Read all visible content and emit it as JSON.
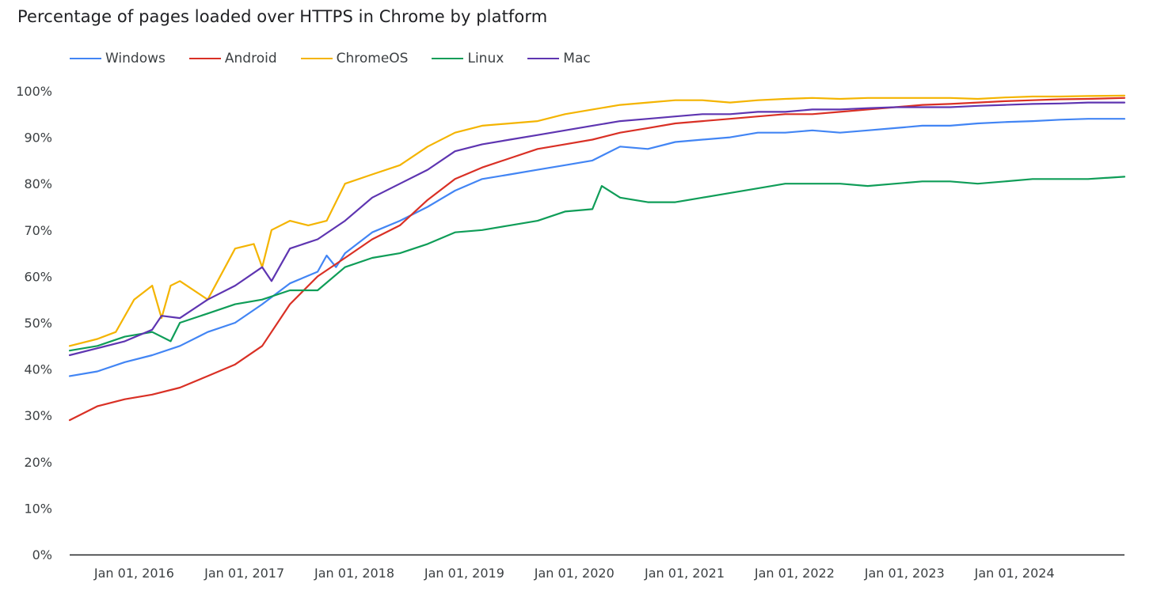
{
  "chart_data": {
    "type": "line",
    "title": "Percentage of pages loaded over HTTPS in Chrome by platform",
    "xlabel": "",
    "ylabel": "",
    "x_range": [
      "2015-06-01",
      "2024-12-31"
    ],
    "ylim": [
      0,
      100
    ],
    "y_ticks": [
      "0%",
      "10%",
      "20%",
      "30%",
      "40%",
      "50%",
      "60%",
      "70%",
      "80%",
      "90%",
      "100%"
    ],
    "x_ticks": [
      {
        "label": "Jan 01, 2016",
        "date": "2016-01-01"
      },
      {
        "label": "Jan 01, 2017",
        "date": "2017-01-01"
      },
      {
        "label": "Jan 01, 2018",
        "date": "2018-01-01"
      },
      {
        "label": "Jan 01, 2019",
        "date": "2019-01-01"
      },
      {
        "label": "Jan 01, 2020",
        "date": "2020-01-01"
      },
      {
        "label": "Jan 01, 2021",
        "date": "2021-01-01"
      },
      {
        "label": "Jan 01, 2022",
        "date": "2022-01-01"
      },
      {
        "label": "Jan 01, 2023",
        "date": "2023-01-01"
      },
      {
        "label": "Jan 01, 2024",
        "date": "2024-01-01"
      }
    ],
    "grid": false,
    "legend_position": "top-left",
    "series": [
      {
        "name": "Windows",
        "color": "#4285f4",
        "points": [
          [
            "2015-06-01",
            38.5
          ],
          [
            "2015-09-01",
            39.5
          ],
          [
            "2015-12-01",
            41.5
          ],
          [
            "2016-03-01",
            43
          ],
          [
            "2016-06-01",
            45
          ],
          [
            "2016-09-01",
            48
          ],
          [
            "2016-12-01",
            50
          ],
          [
            "2017-03-01",
            54
          ],
          [
            "2017-06-01",
            58.5
          ],
          [
            "2017-09-01",
            61
          ],
          [
            "2017-10-01",
            64.5
          ],
          [
            "2017-11-01",
            62
          ],
          [
            "2017-12-01",
            65
          ],
          [
            "2018-03-01",
            69.5
          ],
          [
            "2018-06-01",
            72
          ],
          [
            "2018-09-01",
            75
          ],
          [
            "2018-12-01",
            78.5
          ],
          [
            "2019-03-01",
            81
          ],
          [
            "2019-06-01",
            82
          ],
          [
            "2019-09-01",
            83
          ],
          [
            "2019-12-01",
            84
          ],
          [
            "2020-03-01",
            85
          ],
          [
            "2020-06-01",
            88
          ],
          [
            "2020-09-01",
            87.5
          ],
          [
            "2020-12-01",
            89
          ],
          [
            "2021-03-01",
            89.5
          ],
          [
            "2021-06-01",
            90
          ],
          [
            "2021-09-01",
            91
          ],
          [
            "2021-12-01",
            91
          ],
          [
            "2022-03-01",
            91.5
          ],
          [
            "2022-06-01",
            91
          ],
          [
            "2022-09-01",
            91.5
          ],
          [
            "2022-12-01",
            92
          ],
          [
            "2023-03-01",
            92.5
          ],
          [
            "2023-06-01",
            92.5
          ],
          [
            "2023-09-01",
            93
          ],
          [
            "2023-12-01",
            93.3
          ],
          [
            "2024-03-01",
            93.5
          ],
          [
            "2024-06-01",
            93.8
          ],
          [
            "2024-09-01",
            94
          ],
          [
            "2024-12-31",
            94
          ]
        ]
      },
      {
        "name": "Android",
        "color": "#d93025",
        "points": [
          [
            "2015-06-01",
            29
          ],
          [
            "2015-09-01",
            32
          ],
          [
            "2015-12-01",
            33.5
          ],
          [
            "2016-03-01",
            34.5
          ],
          [
            "2016-06-01",
            36
          ],
          [
            "2016-09-01",
            38.5
          ],
          [
            "2016-12-01",
            41
          ],
          [
            "2017-03-01",
            45
          ],
          [
            "2017-06-01",
            54
          ],
          [
            "2017-09-01",
            60
          ],
          [
            "2017-12-01",
            64
          ],
          [
            "2018-03-01",
            68
          ],
          [
            "2018-06-01",
            71
          ],
          [
            "2018-09-01",
            76.5
          ],
          [
            "2018-12-01",
            81
          ],
          [
            "2019-03-01",
            83.5
          ],
          [
            "2019-06-01",
            85.5
          ],
          [
            "2019-09-01",
            87.5
          ],
          [
            "2019-12-01",
            88.5
          ],
          [
            "2020-03-01",
            89.5
          ],
          [
            "2020-06-01",
            91
          ],
          [
            "2020-09-01",
            92
          ],
          [
            "2020-12-01",
            93
          ],
          [
            "2021-03-01",
            93.5
          ],
          [
            "2021-06-01",
            94
          ],
          [
            "2021-09-01",
            94.5
          ],
          [
            "2021-12-01",
            95
          ],
          [
            "2022-03-01",
            95
          ],
          [
            "2022-06-01",
            95.5
          ],
          [
            "2022-09-01",
            96
          ],
          [
            "2022-12-01",
            96.5
          ],
          [
            "2023-03-01",
            97
          ],
          [
            "2023-06-01",
            97.2
          ],
          [
            "2023-09-01",
            97.5
          ],
          [
            "2023-12-01",
            97.8
          ],
          [
            "2024-03-01",
            98
          ],
          [
            "2024-06-01",
            98.2
          ],
          [
            "2024-09-01",
            98.3
          ],
          [
            "2024-12-31",
            98.5
          ]
        ]
      },
      {
        "name": "ChromeOS",
        "color": "#f4b400",
        "points": [
          [
            "2015-06-01",
            45
          ],
          [
            "2015-09-01",
            46.5
          ],
          [
            "2015-11-01",
            48
          ],
          [
            "2016-01-01",
            55
          ],
          [
            "2016-03-01",
            58
          ],
          [
            "2016-04-01",
            51
          ],
          [
            "2016-05-01",
            58
          ],
          [
            "2016-06-01",
            59
          ],
          [
            "2016-09-01",
            55
          ],
          [
            "2016-12-01",
            66
          ],
          [
            "2017-02-01",
            67
          ],
          [
            "2017-03-01",
            62
          ],
          [
            "2017-04-01",
            70
          ],
          [
            "2017-06-01",
            72
          ],
          [
            "2017-08-01",
            71
          ],
          [
            "2017-10-01",
            72
          ],
          [
            "2017-12-01",
            80
          ],
          [
            "2018-03-01",
            82
          ],
          [
            "2018-06-01",
            84
          ],
          [
            "2018-09-01",
            88
          ],
          [
            "2018-12-01",
            91
          ],
          [
            "2019-03-01",
            92.5
          ],
          [
            "2019-06-01",
            93
          ],
          [
            "2019-09-01",
            93.5
          ],
          [
            "2019-12-01",
            95
          ],
          [
            "2020-03-01",
            96
          ],
          [
            "2020-06-01",
            97
          ],
          [
            "2020-09-01",
            97.5
          ],
          [
            "2020-12-01",
            98
          ],
          [
            "2021-03-01",
            98
          ],
          [
            "2021-06-01",
            97.5
          ],
          [
            "2021-09-01",
            98
          ],
          [
            "2021-12-01",
            98.3
          ],
          [
            "2022-03-01",
            98.5
          ],
          [
            "2022-06-01",
            98.3
          ],
          [
            "2022-09-01",
            98.5
          ],
          [
            "2022-12-01",
            98.5
          ],
          [
            "2023-03-01",
            98.5
          ],
          [
            "2023-06-01",
            98.5
          ],
          [
            "2023-09-01",
            98.3
          ],
          [
            "2023-12-01",
            98.6
          ],
          [
            "2024-03-01",
            98.8
          ],
          [
            "2024-06-01",
            98.8
          ],
          [
            "2024-09-01",
            98.9
          ],
          [
            "2024-12-31",
            99
          ]
        ]
      },
      {
        "name": "Linux",
        "color": "#0f9d58",
        "points": [
          [
            "2015-06-01",
            44
          ],
          [
            "2015-09-01",
            45
          ],
          [
            "2015-12-01",
            47
          ],
          [
            "2016-03-01",
            48
          ],
          [
            "2016-05-01",
            46
          ],
          [
            "2016-06-01",
            50
          ],
          [
            "2016-09-01",
            52
          ],
          [
            "2016-12-01",
            54
          ],
          [
            "2017-03-01",
            55
          ],
          [
            "2017-06-01",
            57
          ],
          [
            "2017-09-01",
            57
          ],
          [
            "2017-12-01",
            62
          ],
          [
            "2018-03-01",
            64
          ],
          [
            "2018-06-01",
            65
          ],
          [
            "2018-09-01",
            67
          ],
          [
            "2018-12-01",
            69.5
          ],
          [
            "2019-03-01",
            70
          ],
          [
            "2019-06-01",
            71
          ],
          [
            "2019-09-01",
            72
          ],
          [
            "2019-12-01",
            74
          ],
          [
            "2020-03-01",
            74.5
          ],
          [
            "2020-04-01",
            79.5
          ],
          [
            "2020-06-01",
            77
          ],
          [
            "2020-09-01",
            76
          ],
          [
            "2020-12-01",
            76
          ],
          [
            "2021-03-01",
            77
          ],
          [
            "2021-06-01",
            78
          ],
          [
            "2021-09-01",
            79
          ],
          [
            "2021-12-01",
            80
          ],
          [
            "2022-03-01",
            80
          ],
          [
            "2022-06-01",
            80
          ],
          [
            "2022-09-01",
            79.5
          ],
          [
            "2022-12-01",
            80
          ],
          [
            "2023-03-01",
            80.5
          ],
          [
            "2023-06-01",
            80.5
          ],
          [
            "2023-09-01",
            80
          ],
          [
            "2023-12-01",
            80.5
          ],
          [
            "2024-03-01",
            81
          ],
          [
            "2024-06-01",
            81
          ],
          [
            "2024-09-01",
            81
          ],
          [
            "2024-12-31",
            81.5
          ]
        ]
      },
      {
        "name": "Mac",
        "color": "#5e35b1",
        "points": [
          [
            "2015-06-01",
            43
          ],
          [
            "2015-09-01",
            44.5
          ],
          [
            "2015-12-01",
            46
          ],
          [
            "2016-03-01",
            48.5
          ],
          [
            "2016-04-01",
            51.5
          ],
          [
            "2016-06-01",
            51
          ],
          [
            "2016-09-01",
            55
          ],
          [
            "2016-12-01",
            58
          ],
          [
            "2017-03-01",
            62
          ],
          [
            "2017-04-01",
            59
          ],
          [
            "2017-06-01",
            66
          ],
          [
            "2017-09-01",
            68
          ],
          [
            "2017-12-01",
            72
          ],
          [
            "2018-03-01",
            77
          ],
          [
            "2018-06-01",
            80
          ],
          [
            "2018-09-01",
            83
          ],
          [
            "2018-12-01",
            87
          ],
          [
            "2019-03-01",
            88.5
          ],
          [
            "2019-06-01",
            89.5
          ],
          [
            "2019-09-01",
            90.5
          ],
          [
            "2019-12-01",
            91.5
          ],
          [
            "2020-03-01",
            92.5
          ],
          [
            "2020-06-01",
            93.5
          ],
          [
            "2020-09-01",
            94
          ],
          [
            "2020-12-01",
            94.5
          ],
          [
            "2021-03-01",
            95
          ],
          [
            "2021-06-01",
            95
          ],
          [
            "2021-09-01",
            95.5
          ],
          [
            "2021-12-01",
            95.5
          ],
          [
            "2022-03-01",
            96
          ],
          [
            "2022-06-01",
            96
          ],
          [
            "2022-09-01",
            96.3
          ],
          [
            "2022-12-01",
            96.5
          ],
          [
            "2023-03-01",
            96.5
          ],
          [
            "2023-06-01",
            96.5
          ],
          [
            "2023-09-01",
            96.8
          ],
          [
            "2023-12-01",
            97
          ],
          [
            "2024-03-01",
            97.2
          ],
          [
            "2024-06-01",
            97.3
          ],
          [
            "2024-09-01",
            97.5
          ],
          [
            "2024-12-31",
            97.5
          ]
        ]
      }
    ]
  }
}
